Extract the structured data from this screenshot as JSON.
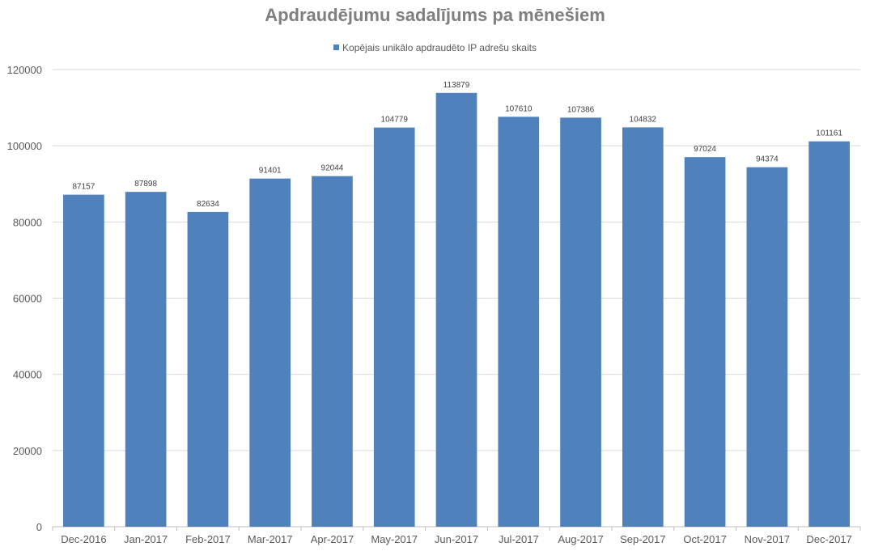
{
  "chart_data": {
    "type": "bar",
    "title": "Apdraudējumu sadalījums pa mēnešiem",
    "xlabel": "",
    "ylabel": "",
    "categories": [
      "Dec-2016",
      "Jan-2017",
      "Feb-2017",
      "Mar-2017",
      "Apr-2017",
      "May-2017",
      "Jun-2017",
      "Jul-2017",
      "Aug-2017",
      "Sep-2017",
      "Oct-2017",
      "Nov-2017",
      "Dec-2017"
    ],
    "series": [
      {
        "name": "Kopējais unikālo apdraudēto IP adrešu skaits",
        "color": "#4f81bd",
        "values": [
          87157,
          87898,
          82634,
          91401,
          92044,
          104779,
          113879,
          107610,
          107386,
          104832,
          97024,
          94374,
          101161
        ]
      }
    ],
    "ylim": [
      0,
      120000
    ],
    "yticks": [
      0,
      20000,
      40000,
      60000,
      80000,
      100000,
      120000
    ],
    "grid": true,
    "legend": "top-center",
    "data_labels": true
  }
}
